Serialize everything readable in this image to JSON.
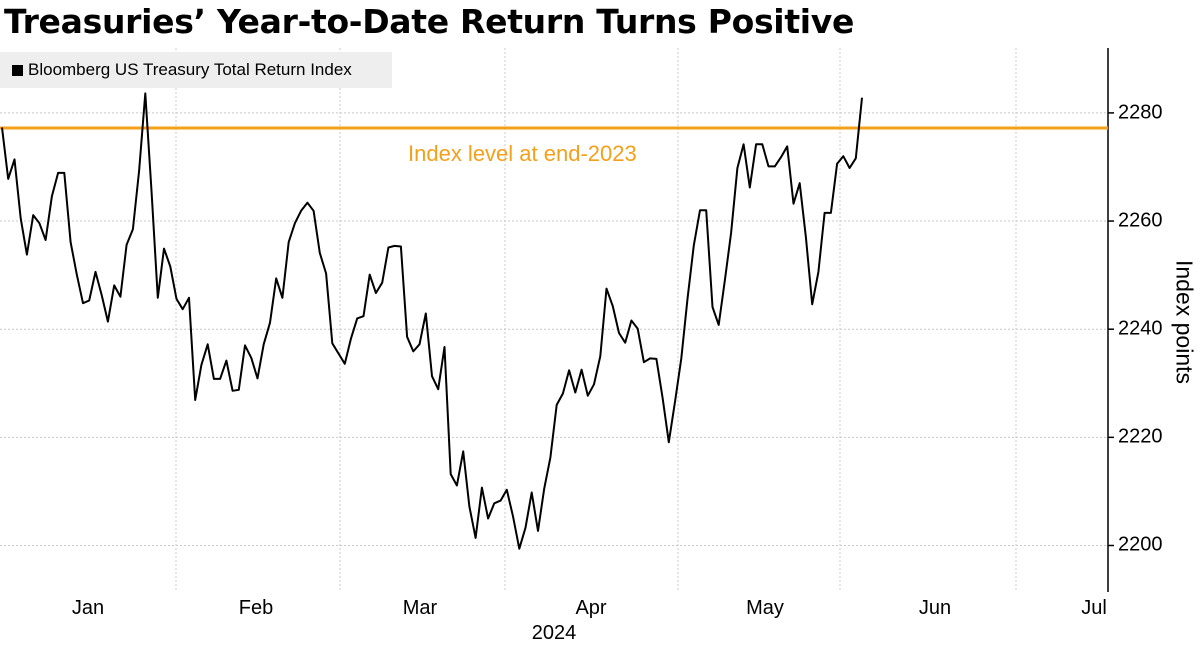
{
  "chart_data": {
    "type": "line",
    "title": "Treasuries’ Year-to-Date Return Turns Positive",
    "legend": "Bloomberg US Treasury Total Return Index",
    "legend_placement": "top-left",
    "xlabel": "2024",
    "ylabel": "Index points",
    "x_ticks": [
      "Jan",
      "Feb",
      "Mar",
      "Apr",
      "May",
      "Jun",
      "Jul"
    ],
    "y_ticks": [
      2200,
      2220,
      2240,
      2260,
      2280
    ],
    "ylim": [
      2191.4,
      2292
    ],
    "xlim": [
      0,
      181
    ],
    "grid": true,
    "reference_line": {
      "value": 2277.2,
      "label": "Index level at end-2023",
      "color": "#f5a01a"
    },
    "series": [
      {
        "name": "Bloomberg US Treasury Total Return Index",
        "color": "#000000",
        "points": [
          [
            0,
            2277.3
          ],
          [
            1,
            2267.8
          ],
          [
            2,
            2271.4
          ],
          [
            3,
            2260.5
          ],
          [
            4,
            2253.8
          ],
          [
            5,
            2261.1
          ],
          [
            6,
            2259.6
          ],
          [
            7,
            2256.5
          ],
          [
            8,
            2264.6
          ],
          [
            9,
            2268.9
          ],
          [
            10,
            2268.9
          ],
          [
            11,
            2256.1
          ],
          [
            12,
            2250.1
          ],
          [
            13,
            2244.8
          ],
          [
            14,
            2245.3
          ],
          [
            15,
            2250.6
          ],
          [
            16,
            2246.3
          ],
          [
            17,
            2241.4
          ],
          [
            18,
            2248.1
          ],
          [
            19,
            2246.0
          ],
          [
            20,
            2255.6
          ],
          [
            21,
            2258.5
          ],
          [
            22,
            2269.3
          ],
          [
            23,
            2283.6
          ],
          [
            24,
            2265.3
          ],
          [
            25,
            2245.8
          ],
          [
            26,
            2254.9
          ],
          [
            27,
            2251.6
          ],
          [
            28,
            2245.6
          ],
          [
            29,
            2243.7
          ],
          [
            30,
            2245.8
          ],
          [
            31,
            2226.9
          ],
          [
            32,
            2233.4
          ],
          [
            33,
            2237.2
          ],
          [
            34,
            2230.8
          ],
          [
            35,
            2230.8
          ],
          [
            36,
            2234.2
          ],
          [
            37,
            2228.6
          ],
          [
            38,
            2228.8
          ],
          [
            39,
            2237.0
          ],
          [
            40,
            2234.7
          ],
          [
            41,
            2230.9
          ],
          [
            42,
            2237.2
          ],
          [
            43,
            2241.2
          ],
          [
            44,
            2249.4
          ],
          [
            45,
            2245.8
          ],
          [
            46,
            2256.1
          ],
          [
            47,
            2259.6
          ],
          [
            48,
            2261.9
          ],
          [
            49,
            2263.4
          ],
          [
            50,
            2261.9
          ],
          [
            51,
            2254.1
          ],
          [
            52,
            2250.3
          ],
          [
            53,
            2237.4
          ],
          [
            54,
            2235.5
          ],
          [
            55,
            2233.6
          ],
          [
            56,
            2238.3
          ],
          [
            57,
            2242.0
          ],
          [
            58,
            2242.4
          ],
          [
            59,
            2250.1
          ],
          [
            60,
            2246.7
          ],
          [
            61,
            2248.6
          ],
          [
            62,
            2255.1
          ],
          [
            63,
            2255.4
          ],
          [
            64,
            2255.3
          ],
          [
            65,
            2238.6
          ],
          [
            66,
            2235.9
          ],
          [
            67,
            2237.2
          ],
          [
            68,
            2242.9
          ],
          [
            69,
            2231.3
          ],
          [
            70,
            2228.9
          ],
          [
            71,
            2236.7
          ],
          [
            72,
            2213.2
          ],
          [
            73,
            2211.1
          ],
          [
            74,
            2217.4
          ],
          [
            75,
            2207.2
          ],
          [
            76,
            2201.4
          ],
          [
            77,
            2210.7
          ],
          [
            78,
            2205.0
          ],
          [
            79,
            2207.8
          ],
          [
            80,
            2208.3
          ],
          [
            81,
            2210.3
          ],
          [
            82,
            2205.4
          ],
          [
            83,
            2199.4
          ],
          [
            84,
            2203.3
          ],
          [
            85,
            2209.8
          ],
          [
            86,
            2202.7
          ],
          [
            87,
            2210.5
          ],
          [
            88,
            2216.3
          ],
          [
            89,
            2226.0
          ],
          [
            90,
            2228.1
          ],
          [
            91,
            2232.4
          ],
          [
            92,
            2228.3
          ],
          [
            93,
            2232.5
          ],
          [
            94,
            2227.7
          ],
          [
            95,
            2229.8
          ],
          [
            96,
            2235.0
          ],
          [
            97,
            2247.5
          ],
          [
            98,
            2244.3
          ],
          [
            99,
            2239.3
          ],
          [
            100,
            2237.5
          ],
          [
            101,
            2241.6
          ],
          [
            102,
            2240.1
          ],
          [
            103,
            2233.9
          ],
          [
            104,
            2234.6
          ],
          [
            105,
            2234.5
          ],
          [
            106,
            2227.3
          ],
          [
            107,
            2219.1
          ],
          [
            108,
            2226.7
          ],
          [
            109,
            2234.6
          ],
          [
            110,
            2245.6
          ],
          [
            111,
            2255.5
          ],
          [
            112,
            2262.0
          ],
          [
            113,
            2262.0
          ],
          [
            114,
            2244.1
          ],
          [
            115,
            2240.8
          ],
          [
            116,
            2249.1
          ],
          [
            117,
            2257.8
          ],
          [
            118,
            2269.8
          ],
          [
            119,
            2274.2
          ],
          [
            120,
            2266.2
          ],
          [
            121,
            2274.2
          ],
          [
            122,
            2274.2
          ],
          [
            123,
            2270.1
          ],
          [
            124,
            2270.1
          ],
          [
            125,
            2271.8
          ],
          [
            126,
            2273.8
          ],
          [
            127,
            2263.2
          ],
          [
            128,
            2267.0
          ],
          [
            129,
            2257.0
          ],
          [
            130,
            2244.6
          ],
          [
            131,
            2250.6
          ],
          [
            132,
            2261.5
          ],
          [
            133,
            2261.5
          ],
          [
            134,
            2270.6
          ],
          [
            135,
            2272.0
          ],
          [
            136,
            2269.8
          ],
          [
            137,
            2271.6
          ],
          [
            138,
            2282.8
          ]
        ]
      }
    ]
  }
}
